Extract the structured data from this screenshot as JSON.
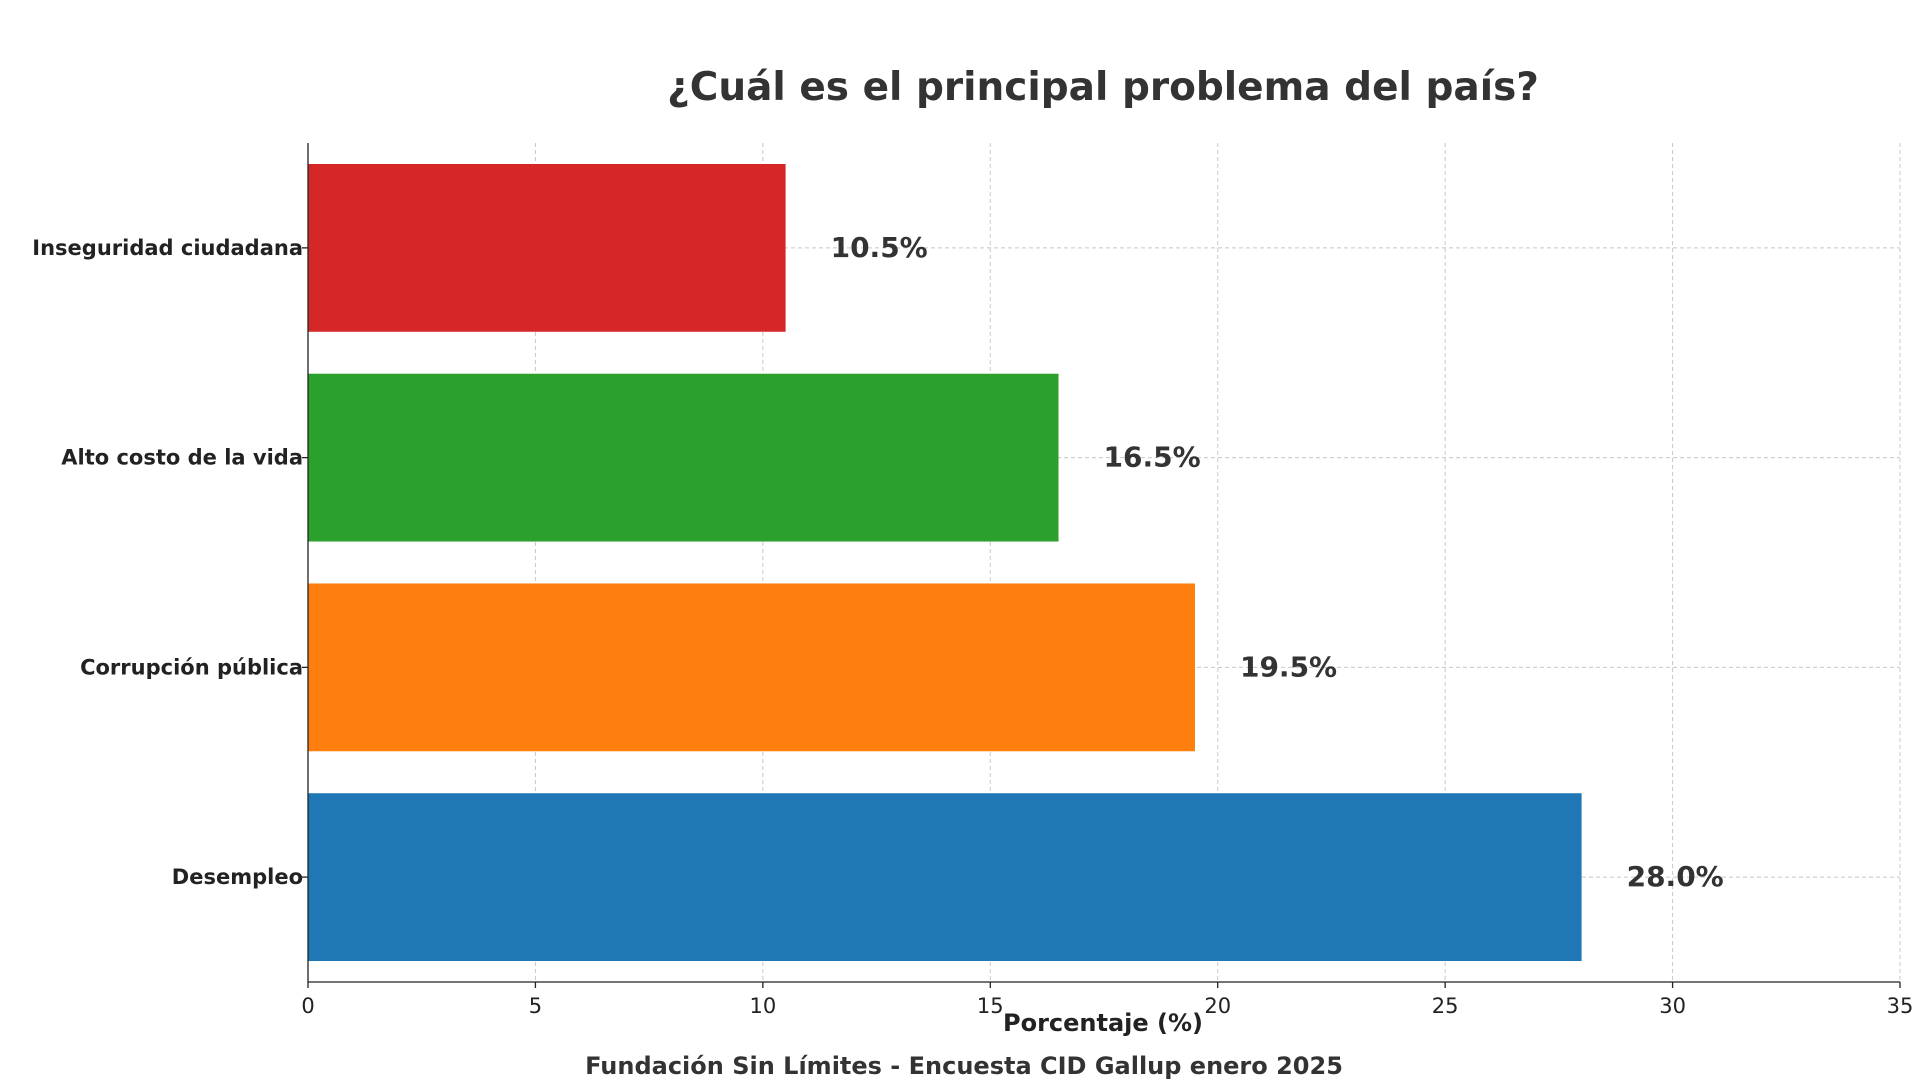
{
  "chart_data": {
    "type": "bar",
    "orientation": "horizontal",
    "title": "¿Cuál es el principal problema del país?",
    "xlabel": "Porcentaje (%)",
    "ylabel": "",
    "caption": "Fundación Sin Límites - Encuesta CID Gallup enero 2025",
    "categories": [
      "Desempleo",
      "Corrupción pública",
      "Alto costo de la vida",
      "Inseguridad ciudadana"
    ],
    "values": [
      28.0,
      19.5,
      16.5,
      10.5
    ],
    "value_labels": [
      "28.0%",
      "19.5%",
      "16.5%",
      "10.5%"
    ],
    "colors": [
      "#1f77b4",
      "#ff7f0e",
      "#2ca02c",
      "#d62728"
    ],
    "xlim": [
      0,
      35
    ],
    "xticks": [
      0,
      5,
      10,
      15,
      20,
      25,
      30,
      35
    ],
    "grid": true,
    "legend": "none"
  }
}
